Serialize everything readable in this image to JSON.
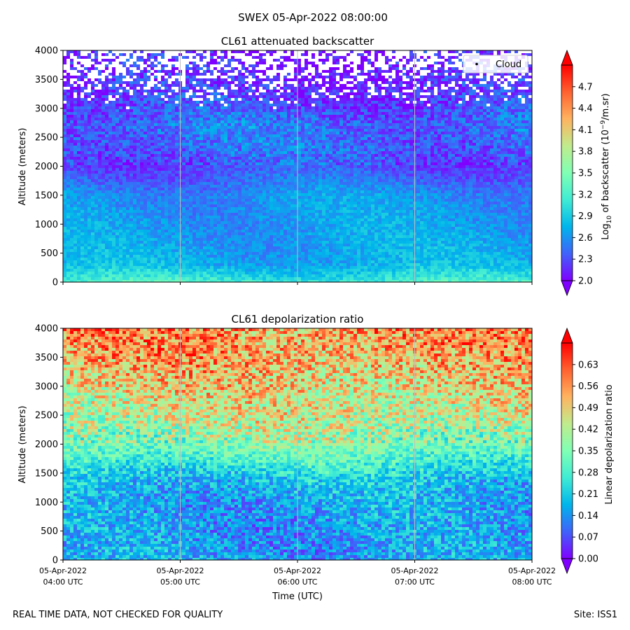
{
  "suptitle": "SWEX 05-Apr-2022 08:00:00",
  "footer": {
    "left": "REAL TIME DATA, NOT CHECKED FOR QUALITY",
    "right": "Site: ISS1"
  },
  "colors": {
    "rainbow": [
      "#8000ff",
      "#4062fa",
      "#00b5eb",
      "#40ecd4",
      "#80ffb4",
      "#c0eb8d",
      "#ffb360",
      "#ff6230",
      "#ff0000"
    ]
  },
  "chart_data": [
    {
      "type": "heatmap",
      "title": "CL61 attenuated backscatter",
      "ylabel": "Altitude (meters)",
      "ylim": [
        0,
        4000
      ],
      "yticks": [
        "0",
        "500",
        "1000",
        "1500",
        "2000",
        "2500",
        "3000",
        "3500",
        "4000"
      ],
      "xlim": [
        "04:00 UTC",
        "08:00 UTC"
      ],
      "xticks": [],
      "legend": {
        "label": "Cloud",
        "placement": "top-right"
      },
      "profile": {
        "altitude": [
          0,
          100,
          300,
          500,
          1000,
          1500,
          1800,
          2000,
          2300,
          2700,
          3000,
          3300,
          3600,
          4000
        ],
        "value": [
          3.2,
          3.0,
          2.75,
          2.7,
          2.65,
          2.6,
          2.4,
          2.3,
          2.4,
          2.45,
          2.3,
          2.2,
          2.15,
          2.1
        ]
      },
      "colorbar": {
        "label_main": "Log",
        "label_sub": "10",
        "label_rest": " of backscatter (10",
        "label_sup": "−9",
        "label_end": "/m.sr)",
        "range": [
          2.0,
          5.0
        ],
        "ticks": [
          "2.0",
          "2.3",
          "2.6",
          "2.9",
          "3.2",
          "3.5",
          "3.8",
          "4.1",
          "4.4",
          "4.7"
        ],
        "extend": "both"
      }
    },
    {
      "type": "heatmap",
      "title": "CL61 depolarization ratio",
      "ylabel": "Altitude (meters)",
      "xlabel": "Time (UTC)",
      "ylim": [
        0,
        4000
      ],
      "yticks": [
        "0",
        "500",
        "1000",
        "1500",
        "2000",
        "2500",
        "3000",
        "3500",
        "4000"
      ],
      "xlim": [
        "04:00 UTC",
        "08:00 UTC"
      ],
      "xticks": [
        {
          "date": "05-Apr-2022",
          "time": "04:00 UTC"
        },
        {
          "date": "05-Apr-2022",
          "time": "05:00 UTC"
        },
        {
          "date": "05-Apr-2022",
          "time": "06:00 UTC"
        },
        {
          "date": "05-Apr-2022",
          "time": "07:00 UTC"
        },
        {
          "date": "05-Apr-2022",
          "time": "08:00 UTC"
        }
      ],
      "profile": {
        "altitude": [
          0,
          200,
          500,
          1000,
          1400,
          1700,
          2000,
          2400,
          2800,
          3200,
          3600,
          4000
        ],
        "value": [
          0.16,
          0.15,
          0.15,
          0.16,
          0.2,
          0.28,
          0.36,
          0.42,
          0.46,
          0.5,
          0.54,
          0.56
        ]
      },
      "colorbar": {
        "label": "Linear depolarization ratio",
        "range": [
          0.0,
          0.7
        ],
        "ticks": [
          "0.00",
          "0.07",
          "0.14",
          "0.21",
          "0.28",
          "0.35",
          "0.42",
          "0.49",
          "0.56",
          "0.63"
        ],
        "extend": "both"
      }
    }
  ]
}
